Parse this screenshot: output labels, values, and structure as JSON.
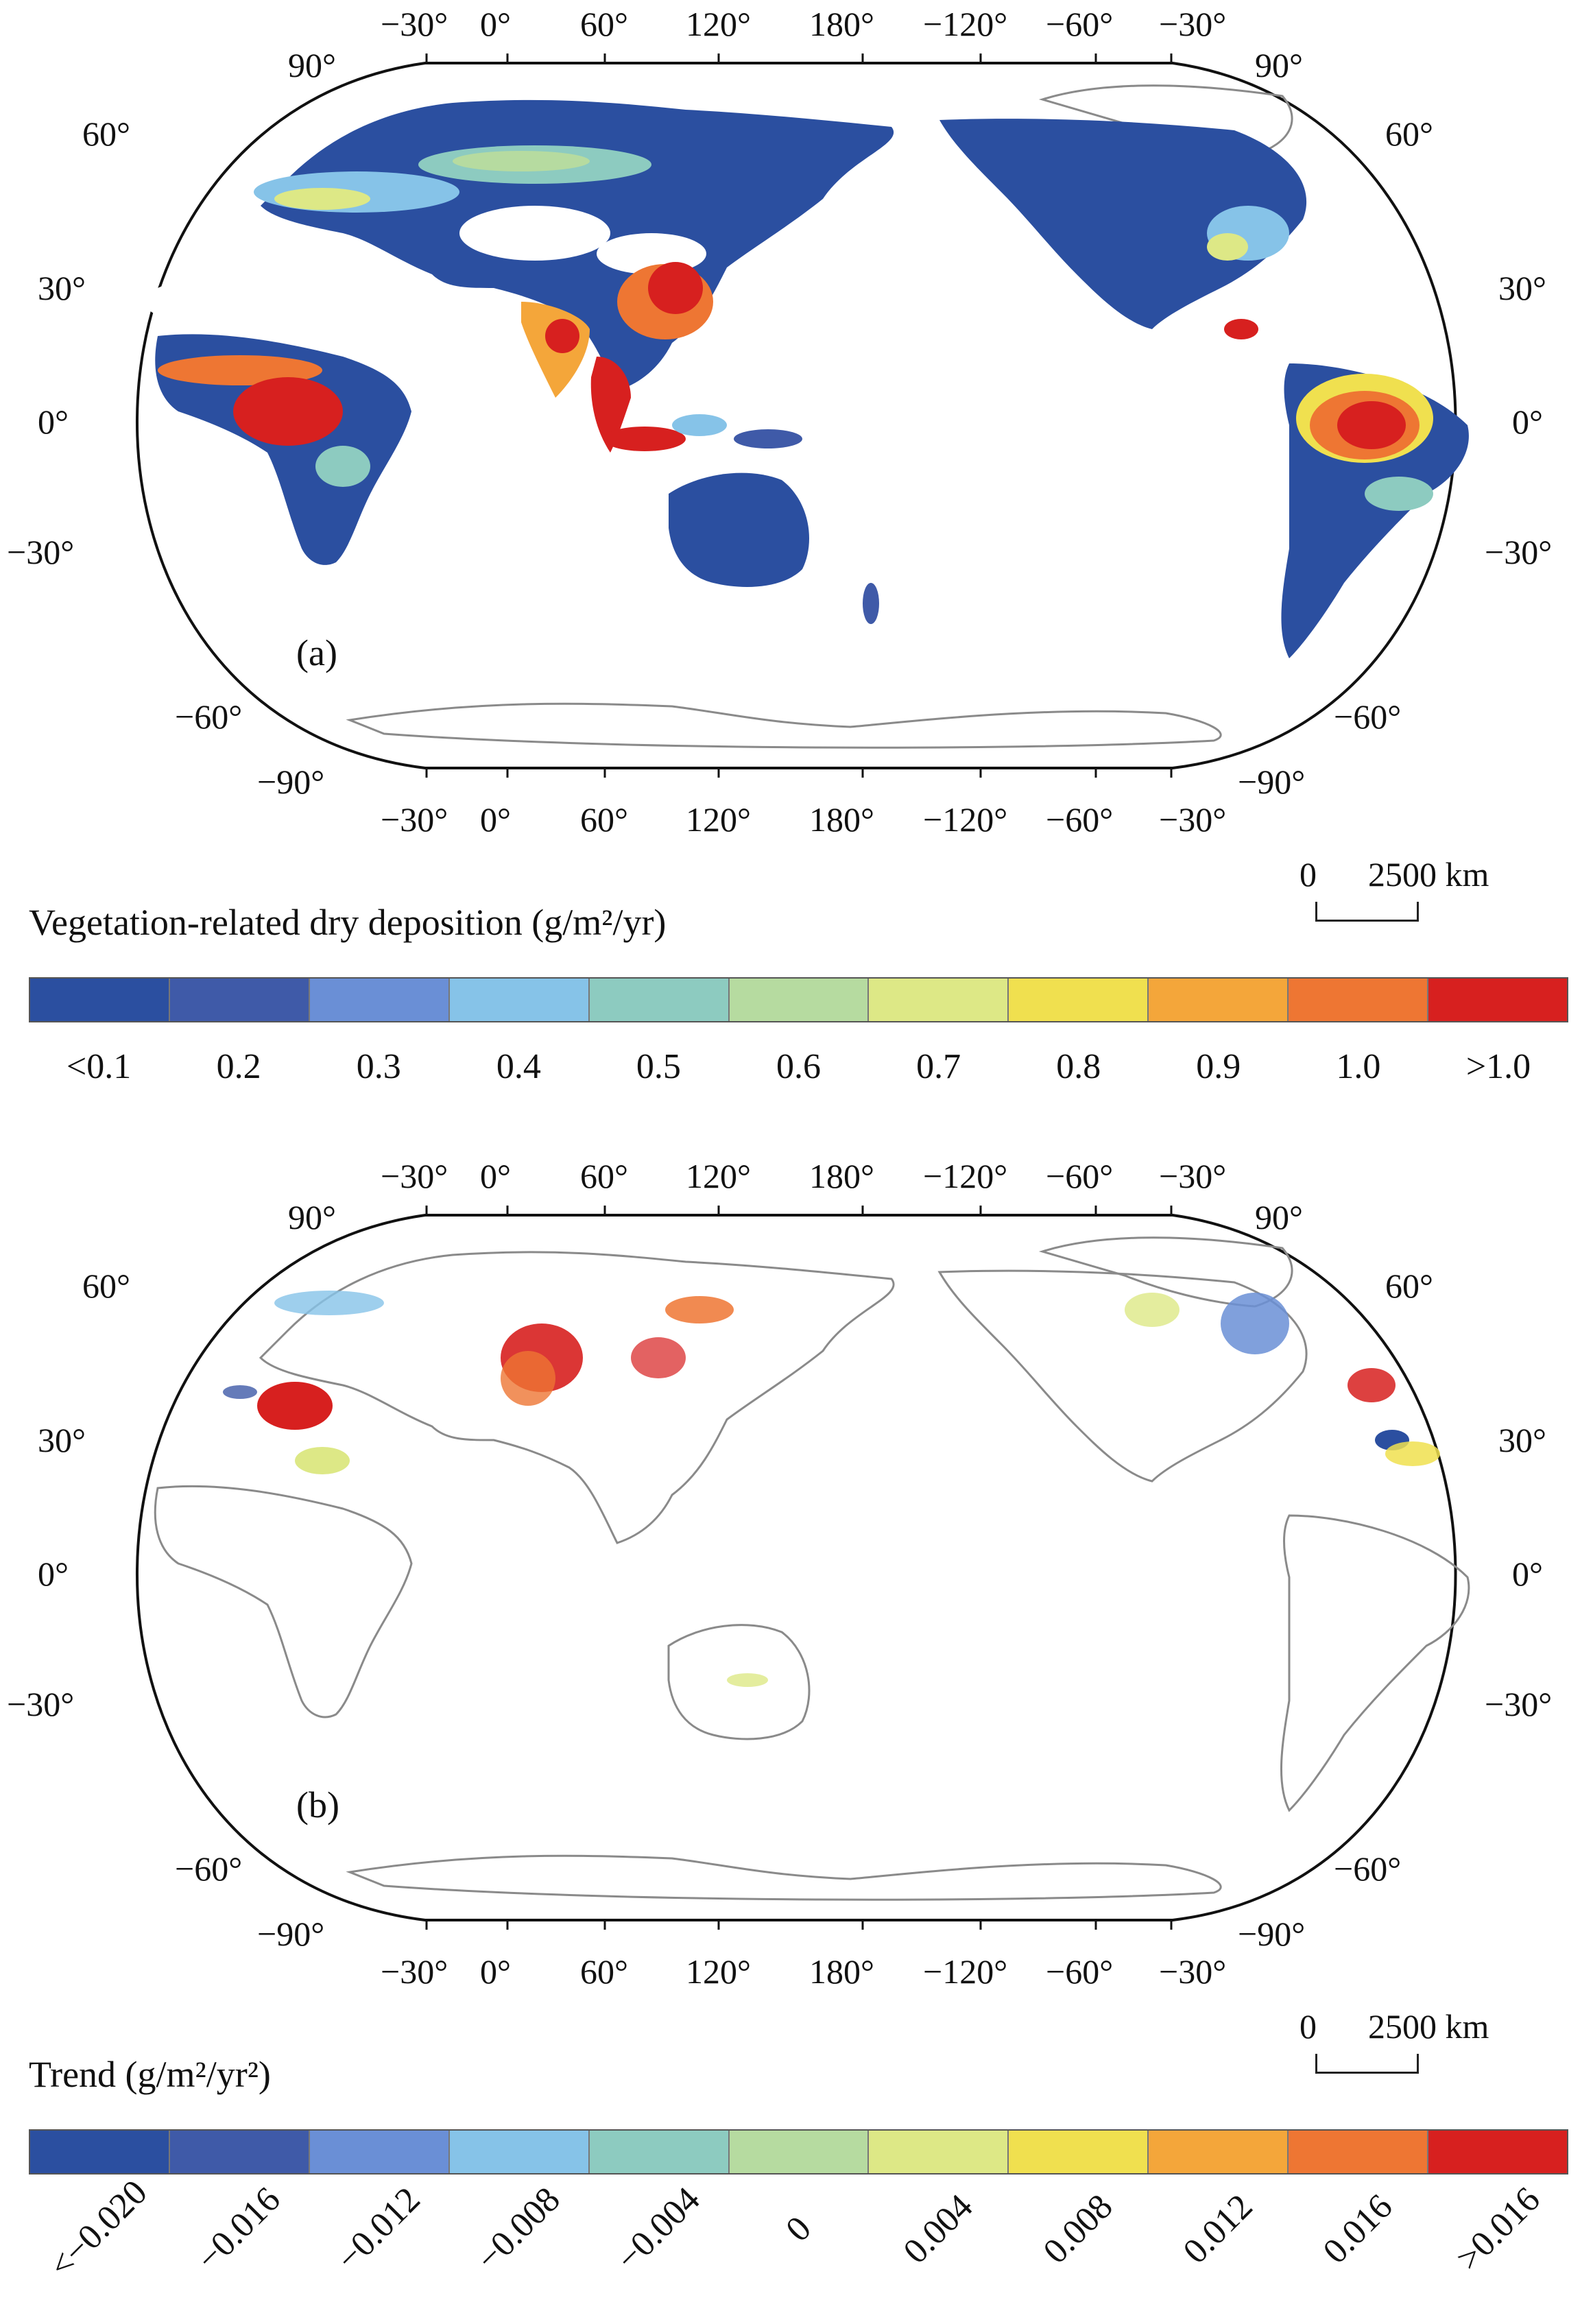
{
  "scale_bar": {
    "zero": "0",
    "distance": "2500 km"
  },
  "lon_labels": {
    "top": [
      "−30°",
      "0°",
      "60°",
      "120°",
      "180°",
      "−120°",
      "−60°",
      "−30°"
    ],
    "bottom": [
      "−30°",
      "0°",
      "60°",
      "120°",
      "180°",
      "−120°",
      "−60°",
      "−30°"
    ]
  },
  "lat_labels": {
    "left": [
      "90°",
      "60°",
      "30°",
      "0°",
      "−30°",
      "−60°",
      "−90°"
    ],
    "right": [
      "90°",
      "60°",
      "30°",
      "0°",
      "−30°",
      "−60°",
      "−90°"
    ]
  },
  "panel_a": {
    "letter": "(a)",
    "legend_title": "Vegetation-related dry deposition (g/m²/yr)",
    "ticks": [
      "<0.1",
      "0.2",
      "0.3",
      "0.4",
      "0.5",
      "0.6",
      "0.7",
      "0.8",
      "0.9",
      "1.0",
      ">1.0"
    ]
  },
  "panel_b": {
    "letter": "(b)",
    "legend_title": "Trend (g/m²/yr²)",
    "ticks": [
      "<−0.020",
      "−0.016",
      "−0.012",
      "−0.008",
      "−0.004",
      "0",
      "0.004",
      "0.008",
      "0.012",
      "0.016",
      ">0.016"
    ]
  },
  "colors": {
    "scale": [
      "#2b4fa0",
      "#3f5aa8",
      "#6a8fd6",
      "#86c3e8",
      "#8dcbc0",
      "#b6dba0",
      "#dde886",
      "#f0e04f",
      "#f4a63a",
      "#ee7633",
      "#d7201f"
    ],
    "coastline": "#8a8a8a",
    "frame": "#111111"
  }
}
